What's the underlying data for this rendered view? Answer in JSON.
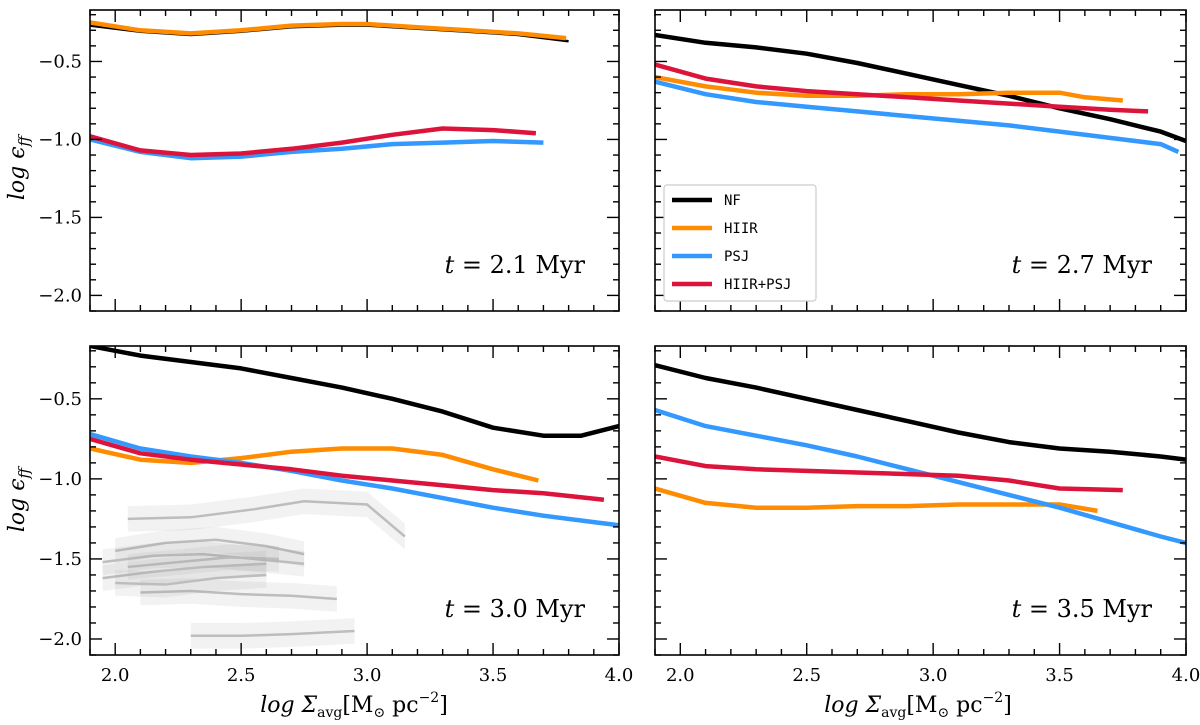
{
  "figure": {
    "ylabel_main": "log ϵ",
    "ylabel_sub": "ff",
    "xlabel_main": "log Σ",
    "xlabel_sub": "avg",
    "xlabel_units": "[M",
    "xlabel_units_sun": "⊙",
    "xlabel_units_rest": " pc",
    "xlabel_units_exp": "−2",
    "xlabel_units_close": "]",
    "legend": [
      {
        "label": "NF",
        "color": "#000000"
      },
      {
        "label": "HIIR",
        "color": "#ff8c00"
      },
      {
        "label": "PSJ",
        "color": "#3399ff"
      },
      {
        "label": "HIIR+PSJ",
        "color": "#dc143c"
      }
    ]
  },
  "chart_data": [
    {
      "type": "line",
      "panel": "top-left",
      "annotation": {
        "var": "t",
        "eq": " = 2.1 ",
        "unit": "Myr"
      },
      "xlim": [
        1.9,
        4.0
      ],
      "ylim": [
        -2.1,
        -0.17
      ],
      "xticks": [
        "2.0",
        "2.5",
        "3.0",
        "3.5",
        "4.0"
      ],
      "yticks": [
        "−0.5",
        "−1.0",
        "−1.5",
        "−2.0"
      ],
      "series": [
        {
          "name": "NF",
          "x": [
            1.9,
            2.1,
            2.3,
            2.5,
            2.7,
            2.9,
            3.0,
            3.2,
            3.4,
            3.6,
            3.8
          ],
          "y": [
            -0.27,
            -0.31,
            -0.33,
            -0.31,
            -0.28,
            -0.27,
            -0.27,
            -0.29,
            -0.31,
            -0.33,
            -0.37
          ]
        },
        {
          "name": "HIIR",
          "x": [
            1.9,
            2.1,
            2.3,
            2.5,
            2.7,
            2.9,
            3.0,
            3.2,
            3.4,
            3.6,
            3.79
          ],
          "y": [
            -0.25,
            -0.3,
            -0.32,
            -0.3,
            -0.27,
            -0.26,
            -0.26,
            -0.28,
            -0.3,
            -0.32,
            -0.35
          ]
        },
        {
          "name": "PSJ",
          "x": [
            1.9,
            2.1,
            2.3,
            2.5,
            2.7,
            2.9,
            3.1,
            3.3,
            3.5,
            3.7
          ],
          "y": [
            -1.0,
            -1.08,
            -1.12,
            -1.11,
            -1.08,
            -1.06,
            -1.03,
            -1.02,
            -1.01,
            -1.02
          ]
        },
        {
          "name": "HIIR+PSJ",
          "x": [
            1.9,
            2.1,
            2.3,
            2.5,
            2.7,
            2.9,
            3.1,
            3.3,
            3.5,
            3.67
          ],
          "y": [
            -0.98,
            -1.07,
            -1.1,
            -1.09,
            -1.06,
            -1.02,
            -0.97,
            -0.93,
            -0.94,
            -0.96
          ]
        }
      ]
    },
    {
      "type": "line",
      "panel": "top-right",
      "annotation": {
        "var": "t",
        "eq": " = 2.7 ",
        "unit": "Myr"
      },
      "xlim": [
        1.9,
        4.0
      ],
      "ylim": [
        -2.1,
        -0.17
      ],
      "xticks": [
        "2.0",
        "2.5",
        "3.0",
        "3.5",
        "4.0"
      ],
      "yticks": [
        "−0.5",
        "−1.0",
        "−1.5",
        "−2.0"
      ],
      "series": [
        {
          "name": "NF",
          "x": [
            1.9,
            2.1,
            2.3,
            2.5,
            2.7,
            2.9,
            3.1,
            3.3,
            3.5,
            3.7,
            3.9,
            4.0
          ],
          "y": [
            -0.33,
            -0.38,
            -0.41,
            -0.45,
            -0.51,
            -0.58,
            -0.65,
            -0.72,
            -0.8,
            -0.87,
            -0.95,
            -1.01
          ]
        },
        {
          "name": "HIIR",
          "x": [
            1.9,
            2.1,
            2.3,
            2.5,
            2.7,
            2.9,
            3.1,
            3.3,
            3.5,
            3.6,
            3.75
          ],
          "y": [
            -0.6,
            -0.66,
            -0.7,
            -0.72,
            -0.72,
            -0.71,
            -0.71,
            -0.7,
            -0.7,
            -0.73,
            -0.75
          ]
        },
        {
          "name": "PSJ",
          "x": [
            1.9,
            2.1,
            2.3,
            2.5,
            2.7,
            2.9,
            3.1,
            3.3,
            3.5,
            3.7,
            3.9,
            3.97
          ],
          "y": [
            -0.63,
            -0.71,
            -0.76,
            -0.79,
            -0.82,
            -0.85,
            -0.88,
            -0.91,
            -0.95,
            -0.99,
            -1.03,
            -1.08
          ]
        },
        {
          "name": "HIIR+PSJ",
          "x": [
            1.9,
            2.1,
            2.3,
            2.5,
            2.7,
            2.9,
            3.1,
            3.3,
            3.5,
            3.7,
            3.85
          ],
          "y": [
            -0.52,
            -0.61,
            -0.66,
            -0.69,
            -0.71,
            -0.73,
            -0.75,
            -0.77,
            -0.79,
            -0.81,
            -0.82
          ]
        }
      ]
    },
    {
      "type": "line",
      "panel": "bottom-left",
      "annotation": {
        "var": "t",
        "eq": " = 3.0 ",
        "unit": "Myr"
      },
      "xlim": [
        1.9,
        4.0
      ],
      "ylim": [
        -2.1,
        -0.17
      ],
      "xticks": [
        "2.0",
        "2.5",
        "3.0",
        "3.5",
        "4.0"
      ],
      "yticks": [
        "−0.5",
        "−1.0",
        "−1.5",
        "−2.0"
      ],
      "series": [
        {
          "name": "NF",
          "x": [
            1.9,
            2.1,
            2.3,
            2.5,
            2.7,
            2.9,
            3.1,
            3.3,
            3.5,
            3.7,
            3.85,
            4.0
          ],
          "y": [
            -0.17,
            -0.23,
            -0.27,
            -0.31,
            -0.37,
            -0.43,
            -0.5,
            -0.58,
            -0.68,
            -0.73,
            -0.73,
            -0.67
          ]
        },
        {
          "name": "HIIR",
          "x": [
            1.9,
            2.1,
            2.3,
            2.5,
            2.7,
            2.9,
            3.1,
            3.3,
            3.5,
            3.68
          ],
          "y": [
            -0.81,
            -0.88,
            -0.9,
            -0.87,
            -0.83,
            -0.81,
            -0.81,
            -0.85,
            -0.94,
            -1.01
          ]
        },
        {
          "name": "PSJ",
          "x": [
            1.9,
            2.1,
            2.3,
            2.5,
            2.7,
            2.9,
            3.1,
            3.3,
            3.5,
            3.7,
            3.9,
            4.0
          ],
          "y": [
            -0.72,
            -0.81,
            -0.86,
            -0.9,
            -0.95,
            -1.01,
            -1.06,
            -1.12,
            -1.18,
            -1.23,
            -1.27,
            -1.29
          ]
        },
        {
          "name": "HIIR+PSJ",
          "x": [
            1.9,
            2.1,
            2.3,
            2.5,
            2.7,
            2.9,
            3.1,
            3.3,
            3.5,
            3.7,
            3.94
          ],
          "y": [
            -0.75,
            -0.84,
            -0.88,
            -0.91,
            -0.94,
            -0.98,
            -1.01,
            -1.04,
            -1.07,
            -1.09,
            -1.13
          ]
        }
      ],
      "observations": [
        {
          "x": [
            2.05,
            2.3,
            2.55,
            2.75,
            3.0,
            3.15
          ],
          "y": [
            -1.25,
            -1.24,
            -1.19,
            -1.14,
            -1.16,
            -1.36
          ]
        },
        {
          "x": [
            2.0,
            2.2,
            2.4,
            2.6,
            2.75
          ],
          "y": [
            -1.45,
            -1.4,
            -1.38,
            -1.42,
            -1.47
          ]
        },
        {
          "x": [
            1.95,
            2.15,
            2.35,
            2.55,
            2.75
          ],
          "y": [
            -1.52,
            -1.48,
            -1.47,
            -1.5,
            -1.53
          ]
        },
        {
          "x": [
            2.05,
            2.25,
            2.45,
            2.65
          ],
          "y": [
            -1.55,
            -1.52,
            -1.49,
            -1.5
          ]
        },
        {
          "x": [
            1.95,
            2.15,
            2.35,
            2.6
          ],
          "y": [
            -1.62,
            -1.58,
            -1.55,
            -1.53
          ]
        },
        {
          "x": [
            2.1,
            2.3,
            2.5,
            2.7,
            2.88
          ],
          "y": [
            -1.71,
            -1.7,
            -1.72,
            -1.73,
            -1.75
          ]
        },
        {
          "x": [
            2.0,
            2.2,
            2.4,
            2.6
          ],
          "y": [
            -1.65,
            -1.66,
            -1.62,
            -1.6
          ]
        },
        {
          "x": [
            2.3,
            2.5,
            2.7,
            2.95
          ],
          "y": [
            -1.98,
            -1.98,
            -1.97,
            -1.95
          ]
        }
      ]
    },
    {
      "type": "line",
      "panel": "bottom-right",
      "annotation": {
        "var": "t",
        "eq": " = 3.5 ",
        "unit": "Myr"
      },
      "xlim": [
        1.9,
        4.0
      ],
      "ylim": [
        -2.1,
        -0.17
      ],
      "xticks": [
        "2.0",
        "2.5",
        "3.0",
        "3.5",
        "4.0"
      ],
      "yticks": [
        "−0.5",
        "−1.0",
        "−1.5",
        "−2.0"
      ],
      "series": [
        {
          "name": "NF",
          "x": [
            1.9,
            2.1,
            2.3,
            2.5,
            2.7,
            2.9,
            3.1,
            3.3,
            3.5,
            3.7,
            3.9,
            4.0
          ],
          "y": [
            -0.29,
            -0.37,
            -0.43,
            -0.5,
            -0.57,
            -0.64,
            -0.71,
            -0.77,
            -0.81,
            -0.83,
            -0.86,
            -0.88
          ]
        },
        {
          "name": "HIIR",
          "x": [
            1.9,
            2.1,
            2.3,
            2.5,
            2.7,
            2.9,
            3.1,
            3.3,
            3.5,
            3.65
          ],
          "y": [
            -1.06,
            -1.15,
            -1.18,
            -1.18,
            -1.17,
            -1.17,
            -1.16,
            -1.16,
            -1.16,
            -1.2
          ]
        },
        {
          "name": "PSJ",
          "x": [
            1.9,
            2.1,
            2.3,
            2.5,
            2.7,
            2.9,
            3.1,
            3.3,
            3.5,
            3.7,
            3.9,
            4.0
          ],
          "y": [
            -0.57,
            -0.67,
            -0.73,
            -0.79,
            -0.86,
            -0.94,
            -1.02,
            -1.1,
            -1.18,
            -1.27,
            -1.36,
            -1.4
          ]
        },
        {
          "name": "HIIR+PSJ",
          "x": [
            1.9,
            2.1,
            2.3,
            2.5,
            2.7,
            2.9,
            3.1,
            3.3,
            3.5,
            3.75
          ],
          "y": [
            -0.86,
            -0.92,
            -0.94,
            -0.95,
            -0.96,
            -0.97,
            -0.98,
            -1.01,
            -1.06,
            -1.07
          ]
        }
      ]
    }
  ]
}
